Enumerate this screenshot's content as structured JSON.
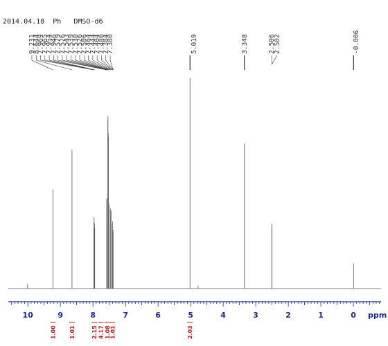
{
  "header": {
    "date": "2014.04.18",
    "sample": "Ph",
    "solvent": "DMSO-d6"
  },
  "chart_data": {
    "type": "line",
    "title": "",
    "xlabel": "ppm",
    "ylabel": "",
    "xlim": [
      10.6,
      -0.85
    ],
    "x_axis_reversed": true,
    "x_ticks": [
      10,
      9,
      8,
      7,
      6,
      5,
      4,
      3,
      2,
      1,
      0
    ],
    "grid": false,
    "peak_labels_upper": [
      "9.231",
      "8.644",
      "7.969",
      "7.965",
      "7.954",
      "7.946",
      "7.579",
      "7.576",
      "7.543",
      "7.539",
      "7.530",
      "7.526",
      "7.506",
      "7.464",
      "7.444",
      "7.404",
      "7.400",
      "7.384",
      "7.380"
    ],
    "peak_labels_single": [
      "5.019",
      "3.348",
      "2.506",
      "2.502",
      "-0.006"
    ],
    "series": [
      {
        "peaks": [
          {
            "shift": 10.01,
            "height": 0.02
          },
          {
            "shift": 9.231,
            "height": 0.47
          },
          {
            "shift": 8.644,
            "height": 0.66
          },
          {
            "shift": 7.969,
            "height": 0.32
          },
          {
            "shift": 7.965,
            "height": 0.34
          },
          {
            "shift": 7.954,
            "height": 0.31
          },
          {
            "shift": 7.946,
            "height": 0.29
          },
          {
            "shift": 7.579,
            "height": 0.42
          },
          {
            "shift": 7.576,
            "height": 0.43
          },
          {
            "shift": 7.543,
            "height": 0.8
          },
          {
            "shift": 7.539,
            "height": 0.82
          },
          {
            "shift": 7.53,
            "height": 0.74
          },
          {
            "shift": 7.526,
            "height": 0.72
          },
          {
            "shift": 7.506,
            "height": 0.4
          },
          {
            "shift": 7.464,
            "height": 0.38
          },
          {
            "shift": 7.444,
            "height": 0.37
          },
          {
            "shift": 7.404,
            "height": 0.31
          },
          {
            "shift": 7.4,
            "height": 0.32
          },
          {
            "shift": 7.384,
            "height": 0.28
          },
          {
            "shift": 7.38,
            "height": 0.27
          },
          {
            "shift": 5.019,
            "height": 1.0
          },
          {
            "shift": 4.77,
            "height": 0.015
          },
          {
            "shift": 3.348,
            "height": 0.69
          },
          {
            "shift": 2.506,
            "height": 0.31
          },
          {
            "shift": 2.502,
            "height": 0.29
          },
          {
            "shift": -0.006,
            "height": 0.12
          }
        ]
      }
    ],
    "integrals": [
      {
        "center": 9.23,
        "value": "1.00"
      },
      {
        "center": 8.64,
        "value": "1.01"
      },
      {
        "center": 7.96,
        "value": "2.15"
      },
      {
        "center": 7.76,
        "value": "4.17"
      },
      {
        "center": 7.56,
        "value": "1.08"
      },
      {
        "center": 7.4,
        "value": "1.01"
      },
      {
        "center": 5.02,
        "value": "2.03"
      }
    ]
  }
}
